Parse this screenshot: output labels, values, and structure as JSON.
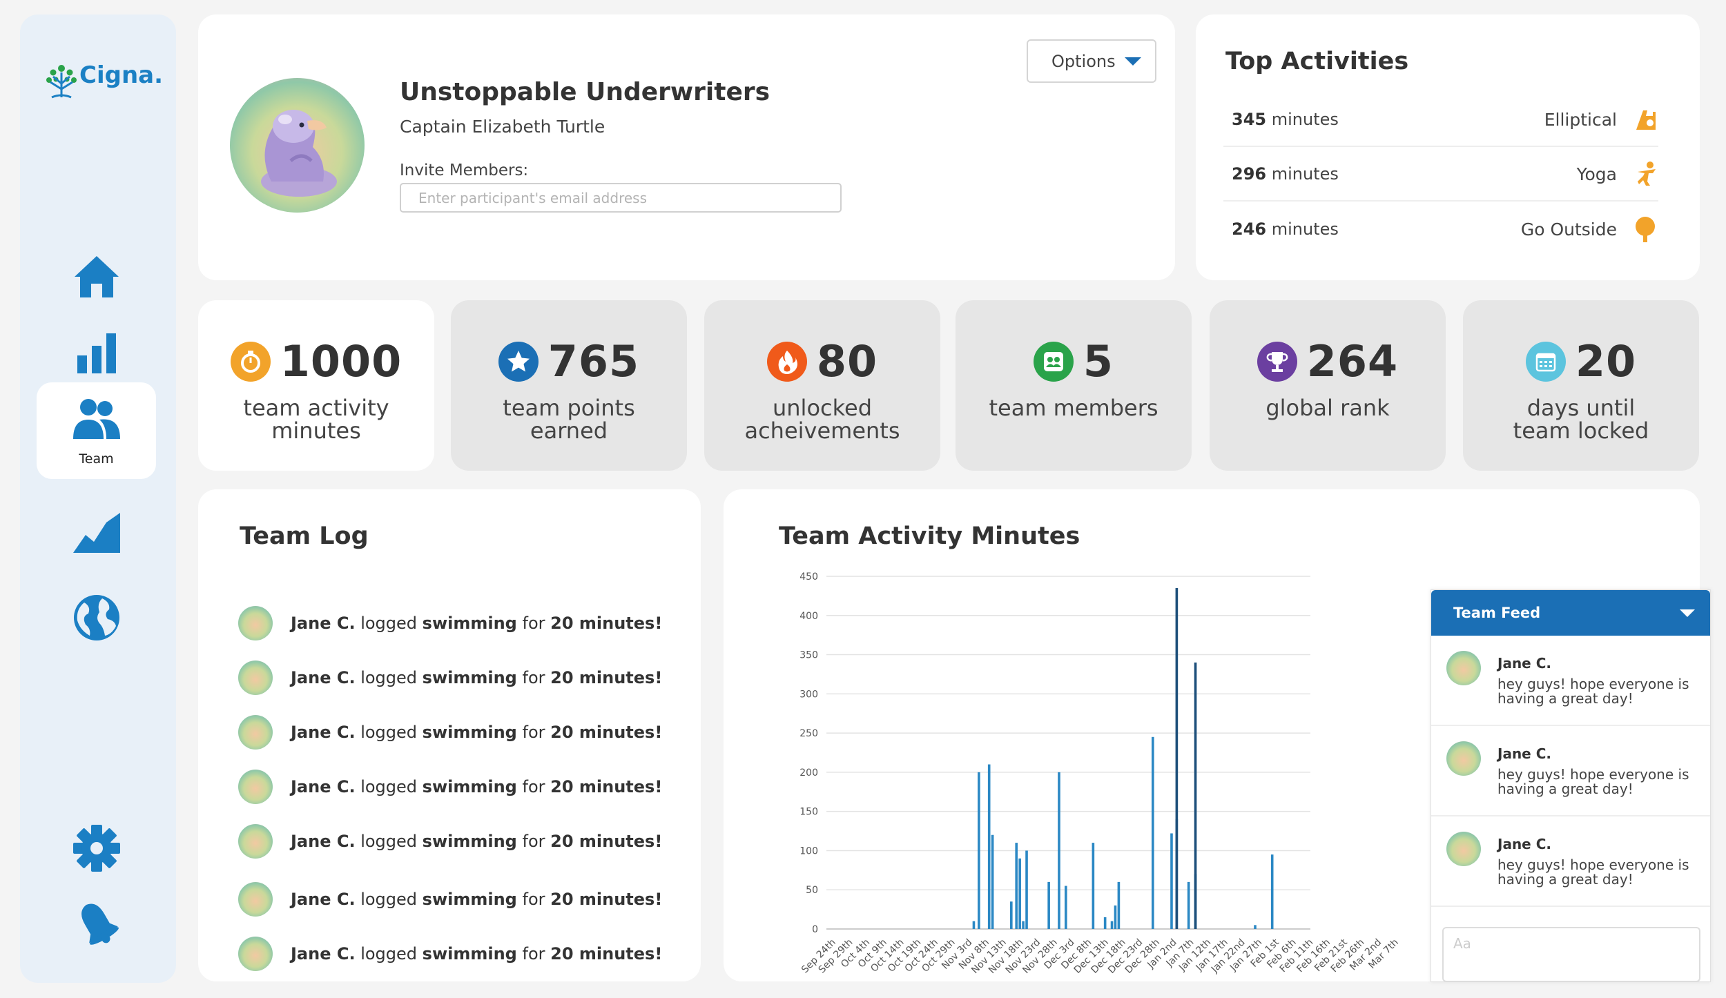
{
  "brand": {
    "logo_text": "Cigna."
  },
  "sidebar": {
    "items": [
      {
        "name": "home",
        "label": ""
      },
      {
        "name": "stats",
        "label": ""
      },
      {
        "name": "team",
        "label": "Team"
      },
      {
        "name": "progress",
        "label": ""
      },
      {
        "name": "global",
        "label": ""
      },
      {
        "name": "settings",
        "label": ""
      },
      {
        "name": "notifications",
        "label": ""
      }
    ]
  },
  "profile": {
    "team_name": "Unstoppable Underwriters",
    "captain": "Captain Elizabeth Turtle",
    "invite_label": "Invite Members:",
    "invite_placeholder": "Enter participant's email address",
    "options_label": "Options"
  },
  "top_activities": {
    "title": "Top Activities",
    "items": [
      {
        "value": "345",
        "unit": " minutes",
        "name": "Elliptical",
        "icon": "elliptical-icon"
      },
      {
        "value": "296",
        "unit": " minutes",
        "name": "Yoga",
        "icon": "yoga-icon"
      },
      {
        "value": "246",
        "unit": " minutes",
        "name": "Go Outside",
        "icon": "tree-icon"
      }
    ]
  },
  "stats": [
    {
      "value": "1000",
      "label1": "team activity",
      "label2": "minutes",
      "icon": "stopwatch-icon",
      "color": "#f2a32a"
    },
    {
      "value": "765",
      "label1": "team points",
      "label2": "earned",
      "icon": "star-icon",
      "color": "#1b6fb5"
    },
    {
      "value": "80",
      "label1": "unlocked",
      "label2": "acheivements",
      "icon": "flame-icon",
      "color": "#f05a1a"
    },
    {
      "value": "5",
      "label1": "team members",
      "label2": "",
      "icon": "team-icon",
      "color": "#2aa34a"
    },
    {
      "value": "264",
      "label1": "global rank",
      "label2": "",
      "icon": "trophy-icon",
      "color": "#6b3fa0"
    },
    {
      "value": "20",
      "label1": "days until",
      "label2": "team locked",
      "icon": "calendar-icon",
      "color": "#5cc4de"
    }
  ],
  "team_log": {
    "title": "Team Log",
    "entries": [
      {
        "name": "Jane C.",
        "verb": " logged ",
        "activity": "swimming",
        "for": " for ",
        "amount": "20 minutes!"
      },
      {
        "name": "Jane C.",
        "verb": " logged ",
        "activity": "swimming",
        "for": " for ",
        "amount": "20 minutes!"
      },
      {
        "name": "Jane C.",
        "verb": " logged ",
        "activity": "swimming",
        "for": " for ",
        "amount": "20 minutes!"
      },
      {
        "name": "Jane C.",
        "verb": " logged ",
        "activity": "swimming",
        "for": " for ",
        "amount": "20 minutes!"
      },
      {
        "name": "Jane C.",
        "verb": " logged ",
        "activity": "swimming",
        "for": " for ",
        "amount": "20 minutes!"
      },
      {
        "name": "Jane C.",
        "verb": " logged ",
        "activity": "swimming",
        "for": " for ",
        "amount": "20 minutes!"
      },
      {
        "name": "Jane C.",
        "verb": " logged ",
        "activity": "swimming",
        "for": " for ",
        "amount": "20 minutes!"
      }
    ]
  },
  "activity_chart": {
    "title": "Team Activity Minutes"
  },
  "chart_data": {
    "type": "bar",
    "title": "Team Activity Minutes",
    "xlabel": "",
    "ylabel": "",
    "ylim": [
      0,
      450
    ],
    "yticks": [
      0,
      50,
      100,
      150,
      200,
      250,
      300,
      350,
      400,
      450
    ],
    "grid": true,
    "categories": [
      "Sep 24th",
      "Sep 29th",
      "Oct 4th",
      "Oct 9th",
      "Oct 14th",
      "Oct 19th",
      "Oct 24th",
      "Oct 29th",
      "Nov 3rd",
      "Nov 8th",
      "Nov 13th",
      "Nov 18th",
      "Nov 23rd",
      "Nov 28th",
      "Dec 3rd",
      "Dec 8th",
      "Dec 13th",
      "Dec 18th",
      "Dec 23rd",
      "Dec 28th",
      "Jan 2nd",
      "Jan 7th",
      "Jan 12th",
      "Jan 17th",
      "Jan 22nd",
      "Jan 27th",
      "Feb 1st",
      "Feb 6th",
      "Feb 11th",
      "Feb 16th",
      "Feb 21st",
      "Feb 26th",
      "Mar 2nd",
      "Mar 7th"
    ],
    "series": [
      {
        "values": [
          {
            "x": 8.4,
            "y": 10
          },
          {
            "x": 8.7,
            "y": 200
          },
          {
            "x": 9.3,
            "y": 210
          },
          {
            "x": 9.5,
            "y": 120
          },
          {
            "x": 10.6,
            "y": 35
          },
          {
            "x": 10.9,
            "y": 110
          },
          {
            "x": 11.1,
            "y": 90
          },
          {
            "x": 11.3,
            "y": 10
          },
          {
            "x": 11.5,
            "y": 100
          },
          {
            "x": 12.8,
            "y": 60
          },
          {
            "x": 13.4,
            "y": 200
          },
          {
            "x": 13.8,
            "y": 55
          },
          {
            "x": 15.4,
            "y": 110
          },
          {
            "x": 16.1,
            "y": 15
          },
          {
            "x": 16.5,
            "y": 10
          },
          {
            "x": 16.7,
            "y": 30
          },
          {
            "x": 16.9,
            "y": 60
          },
          {
            "x": 18.9,
            "y": 245
          },
          {
            "x": 20.0,
            "y": 122
          },
          {
            "x": 20.3,
            "y": 140
          },
          {
            "x": 21.0,
            "y": 60
          },
          {
            "x": 21.4,
            "y": 70
          },
          {
            "x": 24.9,
            "y": 5
          },
          {
            "x": 25.9,
            "y": 95
          }
        ]
      },
      {
        "values": [
          {
            "x": 20.3,
            "y": 435
          },
          {
            "x": 21.4,
            "y": 340
          }
        ]
      }
    ],
    "colors": [
      "#2b88c4",
      "#1d4f7a"
    ]
  },
  "feed": {
    "title": "Team Feed",
    "input_placeholder": "Aa",
    "messages": [
      {
        "name": "Jane C.",
        "text": "hey guys! hope everyone is having a great day!"
      },
      {
        "name": "Jane C.",
        "text": "hey guys! hope everyone is having a great day!"
      },
      {
        "name": "Jane C.",
        "text": "hey guys! hope everyone is having a great day!"
      }
    ]
  }
}
